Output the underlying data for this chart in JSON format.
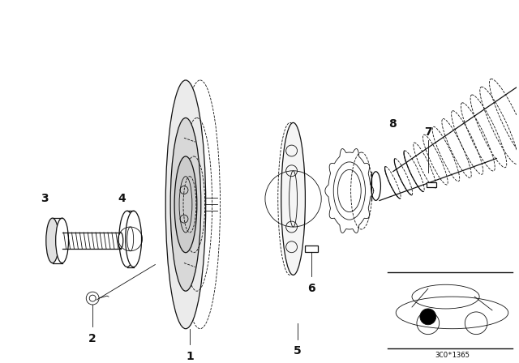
{
  "background_color": "#ffffff",
  "fig_width": 6.4,
  "fig_height": 4.48,
  "dpi": 100,
  "line_color": "#111111",
  "text_color": "#111111",
  "diagram_code": "3CO*1365"
}
